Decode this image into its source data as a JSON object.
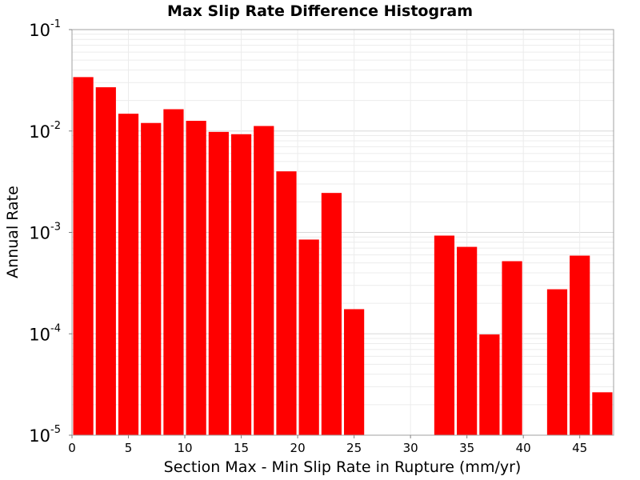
{
  "chart_data": {
    "type": "bar",
    "title": "Max Slip Rate Difference Histogram",
    "xlabel": "Section Max - Min Slip Rate in Rupture (mm/yr)",
    "ylabel": "Annual Rate",
    "xlim": [
      0,
      48
    ],
    "ylim": [
      1e-05,
      0.1
    ],
    "yscale": "log",
    "xticks": [
      "0",
      "5",
      "10",
      "15",
      "20",
      "25",
      "30",
      "35",
      "40",
      "45"
    ],
    "yticks": [
      {
        "base": "10",
        "exp": "-5"
      },
      {
        "base": "10",
        "exp": "-4"
      },
      {
        "base": "10",
        "exp": "-3"
      },
      {
        "base": "10",
        "exp": "-2"
      },
      {
        "base": "10",
        "exp": "-1"
      }
    ],
    "bin_width": 2,
    "x": [
      1,
      3,
      5,
      7,
      9,
      11,
      13,
      15,
      17,
      19,
      21,
      23,
      25,
      27,
      29,
      31,
      33,
      35,
      37,
      39,
      41,
      43,
      45,
      47
    ],
    "values": [
      0.034,
      0.027,
      0.0148,
      0.012,
      0.0164,
      0.0126,
      0.0098,
      0.0093,
      0.0112,
      0.004,
      0.00085,
      0.00245,
      0.000175,
      null,
      null,
      null,
      0.00093,
      0.00072,
      9.85e-05,
      0.00052,
      null,
      0.000275,
      0.00059,
      2.65e-05
    ],
    "bar_color": "#ff0000",
    "grid": true
  }
}
